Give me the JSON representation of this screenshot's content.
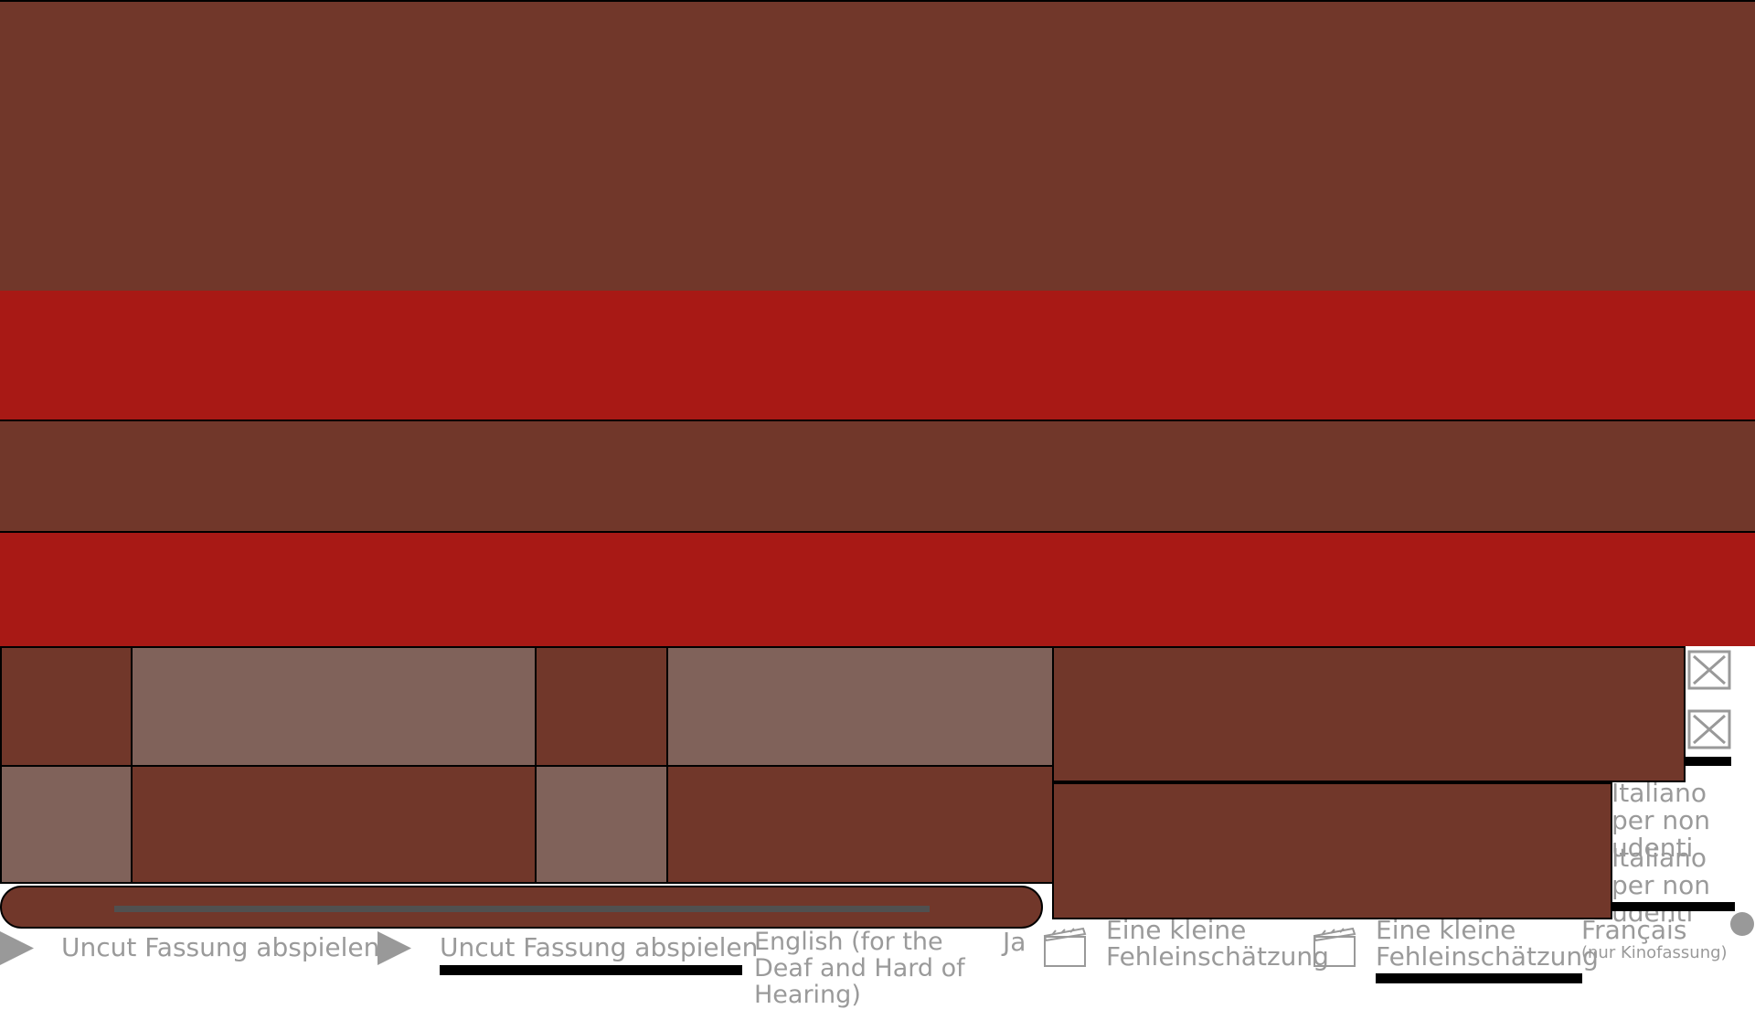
{
  "play_buttons": [
    "Uncut Fassung abspielen",
    "Uncut Fassung abspielen"
  ],
  "subtitles": {
    "english": "English (for the Deaf and Hard of Hearing)",
    "japanese": "Ja",
    "italian": [
      "Italiano per non udenti",
      "Italiano per non udenti"
    ],
    "french": {
      "label": "Français",
      "note": "(nur Kinofassung)"
    }
  },
  "chapters": [
    "Eine kleine Fehleinschätzung",
    "Eine kleine Fehleinschätzung"
  ]
}
